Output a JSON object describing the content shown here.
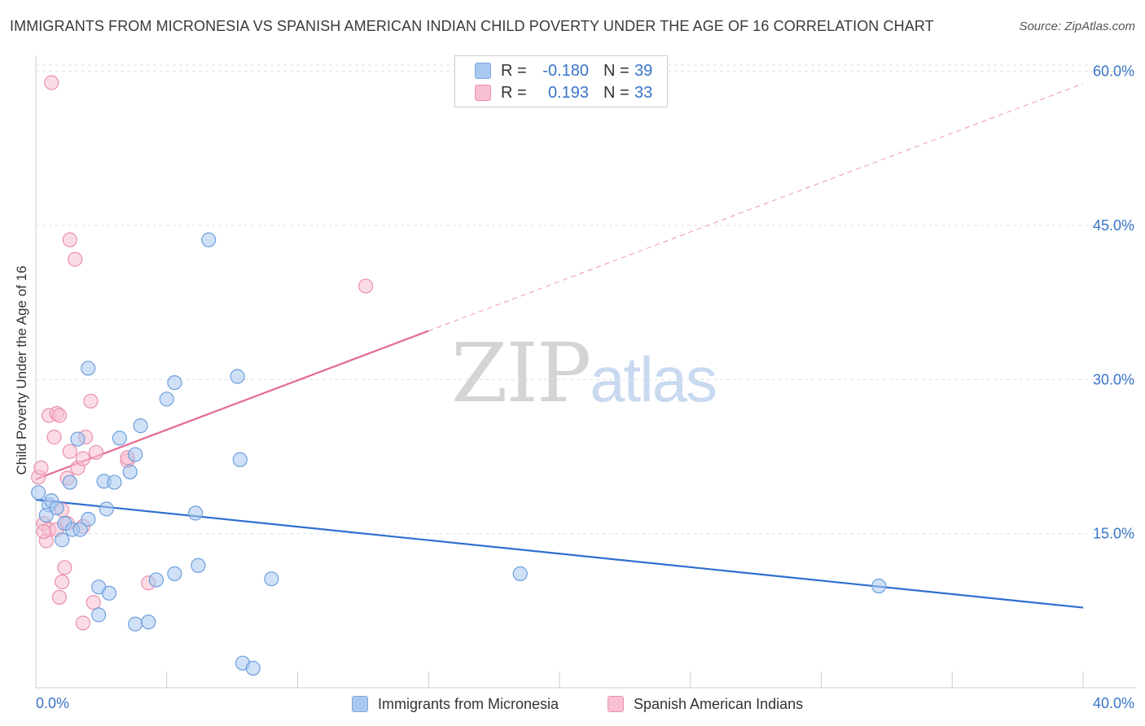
{
  "title": "IMMIGRANTS FROM MICRONESIA VS SPANISH AMERICAN INDIAN CHILD POVERTY UNDER THE AGE OF 16 CORRELATION CHART",
  "source": "Source: ZipAtlas.com",
  "watermark": {
    "zip": "ZIP",
    "atlas": "atlas"
  },
  "legend": {
    "r_label": "R =",
    "n_label": "N =",
    "rows": [
      {
        "r": "-0.180",
        "n": "39",
        "color": "#a9c8f0",
        "border": "#7aa6e0"
      },
      {
        "r": "0.193",
        "n": "33",
        "color": "#f7bfd0",
        "border": "#ee8fae"
      }
    ]
  },
  "chart_data": {
    "type": "scatter",
    "title": "IMMIGRANTS FROM MICRONESIA VS SPANISH AMERICAN INDIAN CHILD POVERTY UNDER THE AGE OF 16 CORRELATION CHART",
    "xlabel": "",
    "ylabel": "Child Poverty Under the Age of 16",
    "xlim": [
      0,
      40
    ],
    "ylim": [
      0,
      61
    ],
    "x_tick_labels": [
      "0.0%",
      "40.0%"
    ],
    "y_ticks": [
      15,
      30,
      45,
      60
    ],
    "y_tick_labels": [
      "15.0%",
      "30.0%",
      "45.0%",
      "60.0%"
    ],
    "grid": true,
    "series": [
      {
        "name": "Immigrants from Micronesia",
        "color": "#a9c8f0",
        "stroke": "#6d9fdc",
        "trend_color": "#2e6fd0",
        "trend": {
          "x0": 0,
          "y0": 18.3,
          "x1": 40,
          "y1": 7.8,
          "dashed_from": null
        },
        "points": [
          [
            0.1,
            19.0
          ],
          [
            0.5,
            17.8
          ],
          [
            0.6,
            18.2
          ],
          [
            0.4,
            16.8
          ],
          [
            0.8,
            17.5
          ],
          [
            1.0,
            14.4
          ],
          [
            1.1,
            16.0
          ],
          [
            1.3,
            20.0
          ],
          [
            1.4,
            15.4
          ],
          [
            1.7,
            15.4
          ],
          [
            1.6,
            24.2
          ],
          [
            2.0,
            16.4
          ],
          [
            2.0,
            31.1
          ],
          [
            2.4,
            9.8
          ],
          [
            2.4,
            7.1
          ],
          [
            2.7,
            17.4
          ],
          [
            2.6,
            20.1
          ],
          [
            2.8,
            9.2
          ],
          [
            3.0,
            20.0
          ],
          [
            3.2,
            24.3
          ],
          [
            3.6,
            21.0
          ],
          [
            3.8,
            6.2
          ],
          [
            3.8,
            22.7
          ],
          [
            4.0,
            25.5
          ],
          [
            4.3,
            6.4
          ],
          [
            4.6,
            10.5
          ],
          [
            5.0,
            28.1
          ],
          [
            5.3,
            11.1
          ],
          [
            5.3,
            29.7
          ],
          [
            6.1,
            17.0
          ],
          [
            6.2,
            11.9
          ],
          [
            6.6,
            43.6
          ],
          [
            7.7,
            30.3
          ],
          [
            7.8,
            22.2
          ],
          [
            7.9,
            2.4
          ],
          [
            8.3,
            1.9
          ],
          [
            9.0,
            10.6
          ],
          [
            18.5,
            11.1
          ],
          [
            32.2,
            9.9
          ]
        ]
      },
      {
        "name": "Spanish American Indians",
        "color": "#f7bfd0",
        "stroke": "#ea8fae",
        "trend_color": "#e46a92",
        "trend": {
          "x0": 0,
          "y0": 20.3,
          "x1": 40,
          "y1": 58.8,
          "solid_until": 15
        },
        "points": [
          [
            0.1,
            20.5
          ],
          [
            0.2,
            21.4
          ],
          [
            0.3,
            16.0
          ],
          [
            0.4,
            14.3
          ],
          [
            0.5,
            15.4
          ],
          [
            0.5,
            26.5
          ],
          [
            0.6,
            58.9
          ],
          [
            0.7,
            24.4
          ],
          [
            0.8,
            26.7
          ],
          [
            0.8,
            15.4
          ],
          [
            0.9,
            8.8
          ],
          [
            0.9,
            26.5
          ],
          [
            1.0,
            17.3
          ],
          [
            1.0,
            10.3
          ],
          [
            1.1,
            11.7
          ],
          [
            1.2,
            16.0
          ],
          [
            1.2,
            20.4
          ],
          [
            1.3,
            23.0
          ],
          [
            1.3,
            43.6
          ],
          [
            1.5,
            41.7
          ],
          [
            1.6,
            21.4
          ],
          [
            1.8,
            15.7
          ],
          [
            1.8,
            22.3
          ],
          [
            1.8,
            6.3
          ],
          [
            1.9,
            24.4
          ],
          [
            2.1,
            27.9
          ],
          [
            2.2,
            8.3
          ],
          [
            2.3,
            22.9
          ],
          [
            3.5,
            22.1
          ],
          [
            3.5,
            22.4
          ],
          [
            4.3,
            10.2
          ],
          [
            12.6,
            39.1
          ],
          [
            0.3,
            15.2
          ]
        ]
      }
    ]
  },
  "bottom_legend": [
    {
      "label": "Immigrants from Micronesia",
      "color": "#a9c8f0",
      "border": "#7aa6e0"
    },
    {
      "label": "Spanish American Indians",
      "color": "#f7bfd0",
      "border": "#ee8fae"
    }
  ]
}
